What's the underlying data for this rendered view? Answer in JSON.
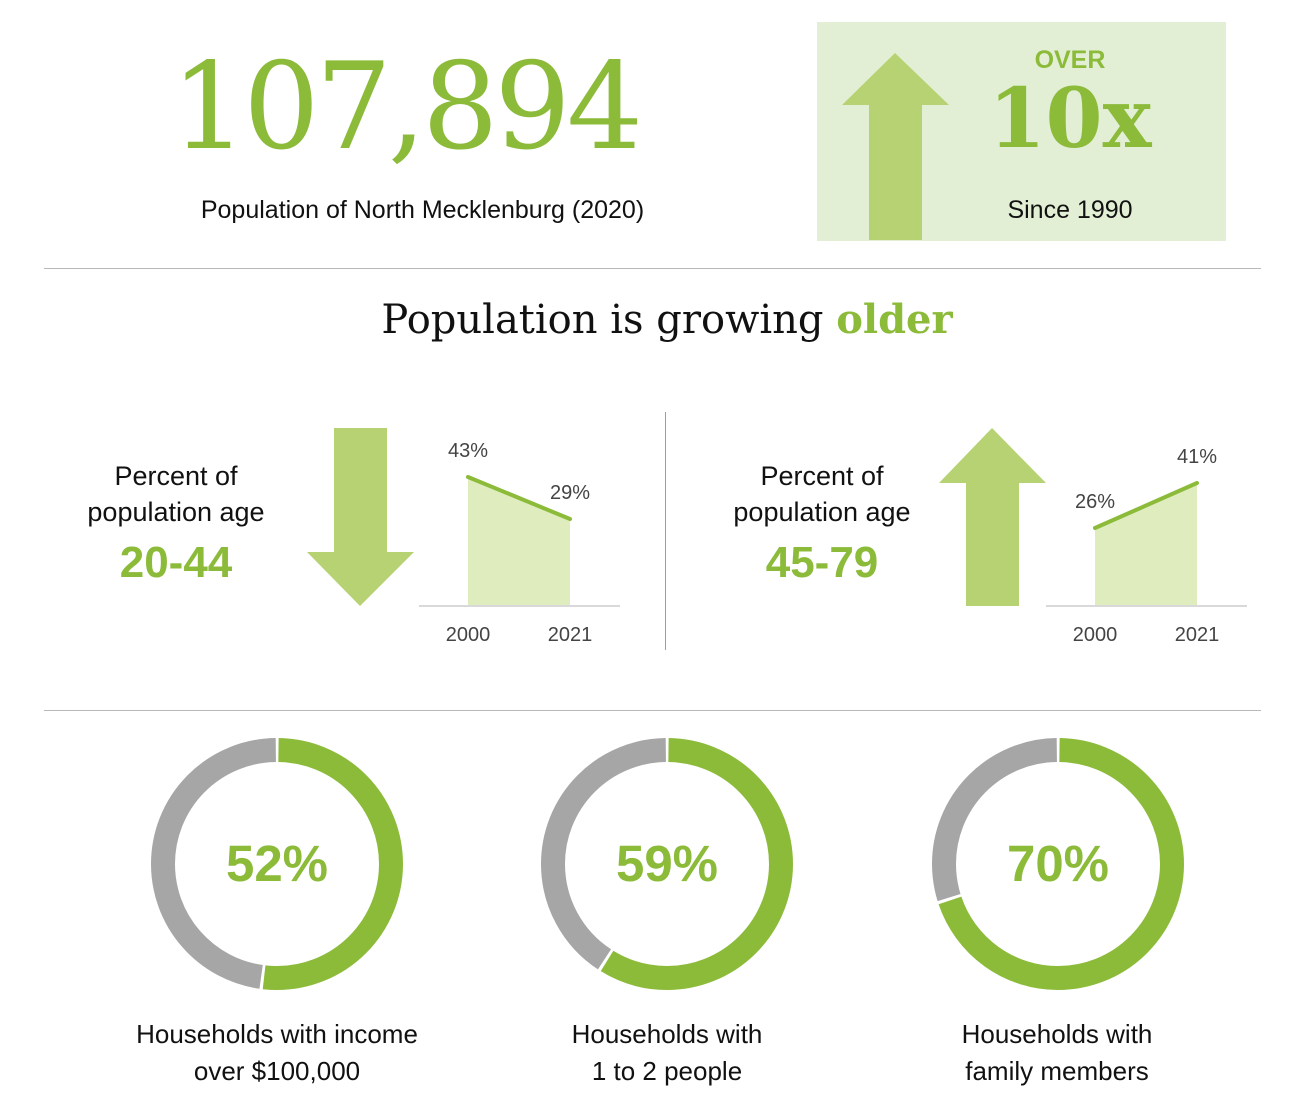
{
  "colors": {
    "accent": "#8cbb3a",
    "accent_light": "#b6d272",
    "fill_light": "#deecbe",
    "box_bg": "#e3efd5",
    "gray": "#a6a6a6"
  },
  "headline": {
    "population": "107,894",
    "population_label": "Population of North Mecklenburg (2020)",
    "growth_over": "OVER",
    "growth_value": "10x",
    "growth_since": "Since 1990",
    "arrow_icon": "arrow-up-icon"
  },
  "section_title": {
    "text": "Population is growing ",
    "highlight": "older"
  },
  "age_panels": [
    {
      "label_line1": "Percent of",
      "label_line2": "population age",
      "range": "20-44",
      "direction": "down",
      "arrow_icon": "arrow-down-icon"
    },
    {
      "label_line1": "Percent of",
      "label_line2": "population age",
      "range": "45-79",
      "direction": "up",
      "arrow_icon": "arrow-up-icon"
    }
  ],
  "chart_data": [
    {
      "type": "area",
      "categories": [
        "2000",
        "2021"
      ],
      "series": [
        {
          "values": [
            43,
            29
          ]
        }
      ],
      "data_labels": [
        "43%",
        "29%"
      ],
      "ylim": [
        0,
        60
      ]
    },
    {
      "type": "area",
      "categories": [
        "2000",
        "2021"
      ],
      "series": [
        {
          "values": [
            26,
            41
          ]
        }
      ],
      "data_labels": [
        "26%",
        "41%"
      ],
      "ylim": [
        0,
        60
      ]
    },
    {
      "type": "pie",
      "value": 52,
      "label": "52%",
      "caption_line1": "Households with income",
      "caption_line2": "over $100,000"
    },
    {
      "type": "pie",
      "value": 59,
      "label": "59%",
      "caption_line1": "Households with",
      "caption_line2": "1 to 2 people"
    },
    {
      "type": "pie",
      "value": 70,
      "label": "70%",
      "caption_line1": "Households with",
      "caption_line2": "family members"
    }
  ]
}
